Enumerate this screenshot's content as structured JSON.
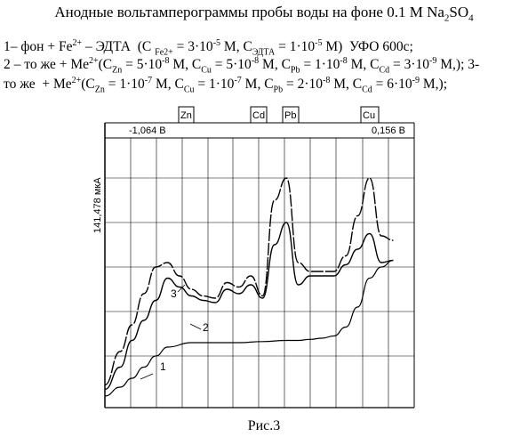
{
  "title_main": "Анодные вольтамперограммы пробы воды на фоне 0.1 М Na",
  "title_sub": "2",
  "title_tail": "SO",
  "title_sub2": "4",
  "description": {
    "line1": "1– фон + Fe2+ – ЭДТА (C Fe2+ = 3·10-5 M, CЭДТА = 1·10-5 M) УФО 600с;",
    "line2": "2 – то же + Me2+(CZn = 5·10-8 M, CCu = 5·10-8 M, CPb = 1·10-8 M, CCd = 3·10-9 M,); 3-",
    "line3": "то же + Me2+(CZn = 1·10-7 M, CCu = 1·10-7 M, CPb = 2·10-8 M, CCd = 6·10-9 M,);"
  },
  "header": {
    "potential_start": "-1,064 В",
    "potential_end": "0,156 В",
    "current_scale": "141,478 мкА",
    "elements": [
      "Zn",
      "Cd",
      "Pb",
      "Cu"
    ]
  },
  "curve_labels": [
    "1",
    "2",
    "3"
  ],
  "caption": "Рис.3",
  "chart_data": {
    "type": "line",
    "xlabel": "",
    "ylabel": "141,478 мкА",
    "xlim": [
      -1.064,
      0.156
    ],
    "series": [
      {
        "name": "1",
        "x": [
          -1.064,
          -1.0,
          -0.95,
          -0.9,
          -0.85,
          -0.8,
          -0.7,
          -0.6,
          -0.5,
          -0.4,
          -0.3,
          -0.25,
          -0.2,
          -0.15,
          -0.1,
          -0.05,
          0.0,
          0.05,
          0.1,
          0.15
        ],
        "y": [
          0.02,
          0.06,
          0.1,
          0.15,
          0.2,
          0.24,
          0.26,
          0.26,
          0.26,
          0.265,
          0.27,
          0.27,
          0.275,
          0.28,
          0.29,
          0.33,
          0.42,
          0.55,
          0.6,
          0.63
        ]
      },
      {
        "name": "2",
        "x": [
          -1.064,
          -1.0,
          -0.95,
          -0.9,
          -0.85,
          -0.8,
          -0.75,
          -0.7,
          -0.65,
          -0.6,
          -0.55,
          -0.5,
          -0.45,
          -0.4,
          -0.35,
          -0.3,
          -0.25,
          -0.2,
          -0.15,
          -0.1,
          -0.05,
          0.0,
          0.05,
          0.1,
          0.15
        ],
        "y": [
          0.05,
          0.15,
          0.27,
          0.36,
          0.45,
          0.55,
          0.51,
          0.47,
          0.45,
          0.44,
          0.5,
          0.48,
          0.52,
          0.46,
          0.7,
          0.8,
          0.52,
          0.56,
          0.56,
          0.56,
          0.61,
          0.68,
          0.75,
          0.62,
          0.63
        ]
      },
      {
        "name": "3",
        "x": [
          -1.064,
          -1.0,
          -0.95,
          -0.9,
          -0.85,
          -0.8,
          -0.75,
          -0.7,
          -0.65,
          -0.6,
          -0.55,
          -0.5,
          -0.45,
          -0.4,
          -0.35,
          -0.3,
          -0.25,
          -0.2,
          -0.15,
          -0.1,
          -0.05,
          0.0,
          0.05,
          0.1,
          0.15
        ],
        "y": [
          0.07,
          0.22,
          0.34,
          0.48,
          0.6,
          0.62,
          0.56,
          0.5,
          0.47,
          0.46,
          0.53,
          0.51,
          0.56,
          0.47,
          0.9,
          1.0,
          0.62,
          0.58,
          0.58,
          0.58,
          0.65,
          0.83,
          1.0,
          0.74,
          0.72
        ]
      }
    ]
  }
}
